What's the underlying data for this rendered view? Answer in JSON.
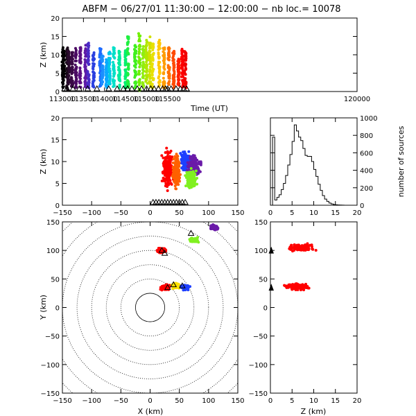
{
  "title": "ABFM − 06/27/01 11:30:00 − 12:00:00 − nb loc.=  10078",
  "chart_data": [
    {
      "id": "time-height",
      "type": "scatter",
      "xlabel": "Time (UT)",
      "ylabel": "Z (km)",
      "xlim": [
        113000,
        120000
      ],
      "ylim": [
        0,
        20
      ],
      "xticks": [
        "113000",
        "113500",
        "114000",
        "114500",
        "115000",
        "115500",
        "120000"
      ],
      "yticks": [
        "0",
        "5",
        "10",
        "15",
        "20"
      ],
      "color_scale": "time: purple → blue → cyan → green → yellow → orange → red",
      "clusters": [
        {
          "x": 113010,
          "zmin": 1,
          "zmax": 12,
          "color": "#000000"
        },
        {
          "x": 113035,
          "zmin": 3,
          "zmax": 11,
          "color": "#000000"
        },
        {
          "x": 113115,
          "zmin": 0,
          "zmax": 12,
          "color": "#1a0a1a"
        },
        {
          "x": 113150,
          "zmin": 2,
          "zmax": 11,
          "color": "#2a0a2e"
        },
        {
          "x": 113230,
          "zmin": 1,
          "zmax": 11,
          "color": "#3a0a46"
        },
        {
          "x": 113320,
          "zmin": 1,
          "zmax": 12,
          "color": "#4a0a62"
        },
        {
          "x": 113420,
          "zmin": 1,
          "zmax": 12,
          "color": "#5a0f80"
        },
        {
          "x": 113550,
          "zmin": 1,
          "zmax": 13,
          "color": "#5e1aa6"
        },
        {
          "x": 113620,
          "zmin": 1,
          "zmax": 14,
          "color": "#4a2bc6"
        },
        {
          "x": 113740,
          "zmin": 1,
          "zmax": 11,
          "color": "#2a40e0"
        },
        {
          "x": 113900,
          "zmin": 1,
          "zmax": 12,
          "color": "#1e6cff"
        },
        {
          "x": 113950,
          "zmin": 2,
          "zmax": 10,
          "color": "#1a90ff"
        },
        {
          "x": 114050,
          "zmin": 1,
          "zmax": 9,
          "color": "#0aa8ff"
        },
        {
          "x": 114120,
          "zmin": 2,
          "zmax": 11,
          "color": "#00c8e8"
        },
        {
          "x": 114220,
          "zmin": 1,
          "zmax": 12,
          "color": "#00e0c8"
        },
        {
          "x": 114350,
          "zmin": 1,
          "zmax": 12,
          "color": "#00e8a0"
        },
        {
          "x": 114500,
          "zmin": 1,
          "zmax": 12,
          "color": "#00f070"
        },
        {
          "x": 114560,
          "zmin": 1,
          "zmax": 15,
          "color": "#20f040"
        },
        {
          "x": 114730,
          "zmin": 1,
          "zmax": 13,
          "color": "#40f020"
        },
        {
          "x": 114830,
          "zmin": 0,
          "zmax": 16,
          "color": "#70f000"
        },
        {
          "x": 114920,
          "zmin": 1,
          "zmax": 13,
          "color": "#90ee10"
        },
        {
          "x": 115000,
          "zmin": 1,
          "zmax": 14,
          "color": "#b0e800"
        },
        {
          "x": 115080,
          "zmin": 1,
          "zmax": 15,
          "color": "#d0e000"
        },
        {
          "x": 115150,
          "zmin": 1,
          "zmax": 13,
          "color": "#e8e000"
        },
        {
          "x": 115300,
          "zmin": 1,
          "zmax": 14,
          "color": "#ffc800"
        },
        {
          "x": 115410,
          "zmin": 1,
          "zmax": 12,
          "color": "#ff9c00"
        },
        {
          "x": 115530,
          "zmin": 1,
          "zmax": 12,
          "color": "#ff7000"
        },
        {
          "x": 115640,
          "zmin": 1,
          "zmax": 12,
          "color": "#ff4a00"
        },
        {
          "x": 115760,
          "zmin": 1,
          "zmax": 9,
          "color": "#ff2000"
        },
        {
          "x": 115850,
          "zmin": 1,
          "zmax": 12,
          "color": "#ff0000"
        },
        {
          "x": 115920,
          "zmin": 1,
          "zmax": 11,
          "color": "#f00000"
        }
      ],
      "triangle_times": [
        113050,
        113110,
        113250,
        113400,
        113600,
        113820,
        114100,
        114300,
        114450,
        114550,
        114650,
        114780,
        114880,
        115000,
        115100,
        115180,
        115280,
        115380,
        115450,
        115500,
        115580,
        115700,
        115800,
        115880,
        115950
      ]
    },
    {
      "id": "xz",
      "type": "scatter",
      "xlabel": "",
      "ylabel": "Z (km)",
      "xlim": [
        -150,
        150
      ],
      "ylim": [
        0,
        20
      ],
      "xticks": [
        "−150",
        "−100",
        "−50",
        "0",
        "50",
        "100",
        "150"
      ],
      "yticks": [
        "0",
        "5",
        "10",
        "15",
        "20"
      ],
      "clusters": [
        {
          "x": 30,
          "z": 8,
          "rx": 12,
          "rz": 6,
          "color": "#ff0000"
        },
        {
          "x": 45,
          "z": 8,
          "rx": 8,
          "rz": 5,
          "color": "#ff6000"
        },
        {
          "x": 62,
          "z": 10,
          "rx": 12,
          "rz": 3,
          "color": "#1e40ff"
        },
        {
          "x": 75,
          "z": 9,
          "rx": 15,
          "rz": 3,
          "color": "#6a1aa8"
        },
        {
          "x": 70,
          "z": 6,
          "rx": 12,
          "rz": 3,
          "color": "#80f020"
        }
      ]
    },
    {
      "id": "histogram",
      "type": "bar",
      "xlabel": "",
      "ylabel": "number of sources",
      "xlim": [
        0,
        20
      ],
      "ylim": [
        0,
        1000
      ],
      "xticks": [
        "0",
        "5",
        "10",
        "15",
        "20"
      ],
      "yticks": [
        "0",
        "200",
        "400",
        "600",
        "800",
        "1000"
      ],
      "bin_width": 0.5,
      "values": [
        0,
        780,
        60,
        90,
        120,
        180,
        250,
        340,
        460,
        580,
        730,
        920,
        850,
        780,
        740,
        650,
        570,
        560,
        560,
        500,
        410,
        330,
        240,
        170,
        110,
        70,
        45,
        25,
        15,
        8,
        5,
        3,
        2,
        1,
        0,
        0,
        0,
        0,
        0,
        0
      ]
    },
    {
      "id": "plan",
      "type": "scatter",
      "xlabel": "X (km)",
      "ylabel": "Y (km)",
      "xlim": [
        -150,
        150
      ],
      "ylim": [
        -150,
        150
      ],
      "xticks": [
        "−150",
        "−100",
        "−50",
        "0",
        "50",
        "100",
        "150"
      ],
      "yticks": [
        "−150",
        "−100",
        "−50",
        "0",
        "50",
        "100",
        "150"
      ],
      "range_ring_radius_km": [
        25,
        50,
        75,
        100,
        125,
        150,
        175,
        200
      ],
      "clusters": [
        {
          "x": 25,
          "y": 35,
          "color": "#ff0000"
        },
        {
          "x": 45,
          "y": 38,
          "color": "#ffe000"
        },
        {
          "x": 60,
          "y": 35,
          "color": "#1e40ff"
        },
        {
          "x": 20,
          "y": 100,
          "color": "#ff0000"
        },
        {
          "x": 75,
          "y": 118,
          "color": "#80f020"
        },
        {
          "x": 110,
          "y": 140,
          "color": "#6a1aa8"
        }
      ]
    },
    {
      "id": "zy",
      "type": "scatter",
      "xlabel": "Z (km)",
      "ylabel": "",
      "xlim": [
        0,
        20
      ],
      "ylim": [
        -150,
        150
      ],
      "xticks": [
        "0",
        "5",
        "10",
        "15",
        "20"
      ],
      "yticks": [
        "−150",
        "−100",
        "−50",
        "0",
        "50",
        "100",
        "150"
      ],
      "clusters": [
        {
          "z": 7,
          "y": 105,
          "color": "#ff0000"
        },
        {
          "z": 6,
          "y": 37,
          "color": "#ff0000"
        }
      ]
    }
  ]
}
